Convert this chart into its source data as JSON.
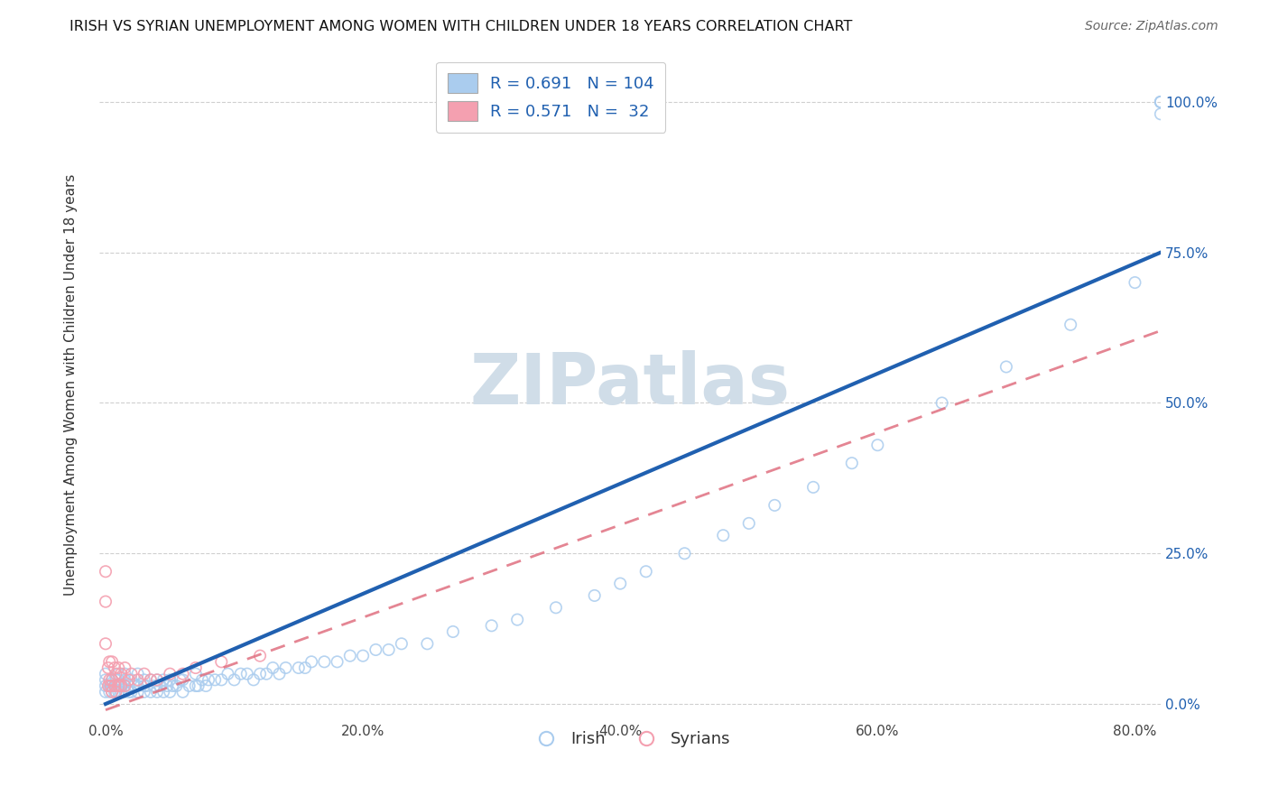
{
  "title": "IRISH VS SYRIAN UNEMPLOYMENT AMONG WOMEN WITH CHILDREN UNDER 18 YEARS CORRELATION CHART",
  "source": "Source: ZipAtlas.com",
  "ylabel": "Unemployment Among Women with Children Under 18 years",
  "xlim": [
    -0.005,
    0.82
  ],
  "ylim": [
    -0.02,
    1.08
  ],
  "irish_R": 0.691,
  "irish_N": 104,
  "syrian_R": 0.571,
  "syrian_N": 32,
  "irish_color": "#aaccee",
  "syrian_color": "#f4a0b0",
  "irish_line_color": "#2060b0",
  "syrian_line_color": "#e07080",
  "background_color": "#ffffff",
  "watermark_color": "#d0dde8",
  "grid_color": "#bbbbbb",
  "title_fontsize": 11.5,
  "source_fontsize": 10,
  "legend_label_irish": "Irish",
  "legend_label_syrian": "Syrians",
  "irish_line_intercept": 0.0,
  "irish_line_slope": 0.9375,
  "syrian_line_intercept": -0.01,
  "syrian_line_slope": 0.9,
  "irish_dense_x": [
    0.0,
    0.0,
    0.0,
    0.0,
    0.003,
    0.003,
    0.005,
    0.005,
    0.005,
    0.007,
    0.007,
    0.008,
    0.008,
    0.008,
    0.01,
    0.01,
    0.01,
    0.01,
    0.012,
    0.012,
    0.015,
    0.015,
    0.015,
    0.015,
    0.018,
    0.018,
    0.02,
    0.02,
    0.022,
    0.025,
    0.025,
    0.025,
    0.03,
    0.03,
    0.03,
    0.032,
    0.035,
    0.035,
    0.038,
    0.04,
    0.04,
    0.042,
    0.045,
    0.045,
    0.048,
    0.05,
    0.05,
    0.052,
    0.055,
    0.058,
    0.06,
    0.06,
    0.065,
    0.07,
    0.07,
    0.072,
    0.075,
    0.078,
    0.08,
    0.085,
    0.09,
    0.095,
    0.1,
    0.105,
    0.11,
    0.115,
    0.12,
    0.125,
    0.13,
    0.135,
    0.14,
    0.15,
    0.155,
    0.16,
    0.17,
    0.18,
    0.19,
    0.2,
    0.21,
    0.22,
    0.23,
    0.25,
    0.27,
    0.3,
    0.32,
    0.35,
    0.38,
    0.4,
    0.42,
    0.45,
    0.48,
    0.5,
    0.52,
    0.55,
    0.58,
    0.6,
    0.65,
    0.7,
    0.75,
    0.8,
    0.82,
    0.82,
    0.82,
    0.82
  ],
  "irish_dense_y": [
    0.02,
    0.03,
    0.04,
    0.05,
    0.02,
    0.03,
    0.02,
    0.03,
    0.04,
    0.02,
    0.03,
    0.02,
    0.03,
    0.04,
    0.02,
    0.03,
    0.04,
    0.05,
    0.02,
    0.03,
    0.02,
    0.03,
    0.04,
    0.05,
    0.02,
    0.03,
    0.02,
    0.04,
    0.03,
    0.02,
    0.03,
    0.05,
    0.02,
    0.03,
    0.04,
    0.03,
    0.02,
    0.04,
    0.03,
    0.02,
    0.04,
    0.03,
    0.02,
    0.04,
    0.03,
    0.02,
    0.04,
    0.03,
    0.03,
    0.04,
    0.02,
    0.04,
    0.03,
    0.03,
    0.05,
    0.03,
    0.04,
    0.03,
    0.04,
    0.04,
    0.04,
    0.05,
    0.04,
    0.05,
    0.05,
    0.04,
    0.05,
    0.05,
    0.06,
    0.05,
    0.06,
    0.06,
    0.06,
    0.07,
    0.07,
    0.07,
    0.08,
    0.08,
    0.09,
    0.09,
    0.1,
    0.1,
    0.12,
    0.13,
    0.14,
    0.16,
    0.18,
    0.2,
    0.22,
    0.25,
    0.28,
    0.3,
    0.33,
    0.36,
    0.4,
    0.43,
    0.5,
    0.56,
    0.63,
    0.7,
    0.98,
    1.0,
    1.0,
    1.0
  ],
  "syrian_x": [
    0.0,
    0.0,
    0.0,
    0.002,
    0.002,
    0.003,
    0.003,
    0.004,
    0.005,
    0.005,
    0.005,
    0.007,
    0.007,
    0.008,
    0.008,
    0.01,
    0.01,
    0.012,
    0.012,
    0.015,
    0.015,
    0.018,
    0.02,
    0.025,
    0.03,
    0.035,
    0.04,
    0.05,
    0.06,
    0.07,
    0.09,
    0.12
  ],
  "syrian_y": [
    0.22,
    0.17,
    0.1,
    0.03,
    0.06,
    0.04,
    0.07,
    0.03,
    0.02,
    0.04,
    0.07,
    0.03,
    0.06,
    0.02,
    0.05,
    0.03,
    0.06,
    0.03,
    0.05,
    0.03,
    0.06,
    0.04,
    0.05,
    0.04,
    0.05,
    0.04,
    0.04,
    0.05,
    0.05,
    0.06,
    0.07,
    0.08
  ]
}
